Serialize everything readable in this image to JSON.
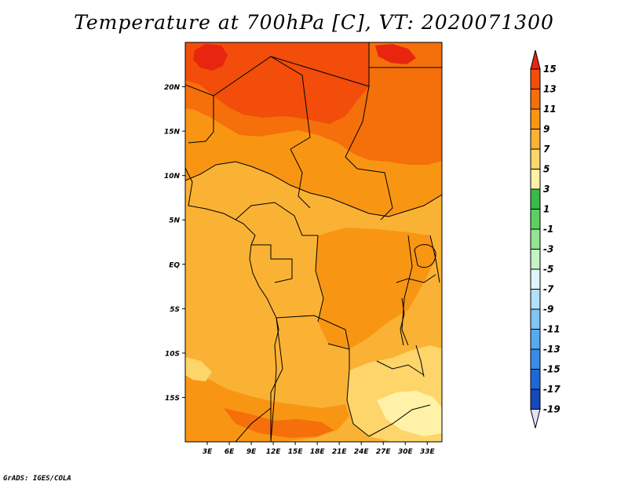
{
  "title": "Temperature at 700hPa [C], VT: 2020071300",
  "credit": "GrADS: IGES/COLA",
  "map": {
    "lon_range": [
      0,
      35
    ],
    "lat_range": [
      -20,
      25
    ],
    "lat_labels": [
      {
        "value": 20,
        "label": "20N"
      },
      {
        "value": 15,
        "label": "15N"
      },
      {
        "value": 10,
        "label": "10N"
      },
      {
        "value": 5,
        "label": "5N"
      },
      {
        "value": 0,
        "label": "EQ"
      },
      {
        "value": -5,
        "label": "5S"
      },
      {
        "value": -10,
        "label": "10S"
      },
      {
        "value": -15,
        "label": "15S"
      }
    ],
    "lon_labels": [
      {
        "value": 3,
        "label": "3E"
      },
      {
        "value": 6,
        "label": "6E"
      },
      {
        "value": 9,
        "label": "9E"
      },
      {
        "value": 12,
        "label": "12E"
      },
      {
        "value": 15,
        "label": "15E"
      },
      {
        "value": 18,
        "label": "18E"
      },
      {
        "value": 21,
        "label": "21E"
      },
      {
        "value": 24,
        "label": "24E"
      },
      {
        "value": 27,
        "label": "27E"
      },
      {
        "value": 30,
        "label": "30E"
      },
      {
        "value": 33,
        "label": "33E"
      }
    ]
  },
  "colorbar": {
    "labels": [
      "15",
      "13",
      "11",
      "9",
      "7",
      "5",
      "3",
      "1",
      "-1",
      "-3",
      "-5",
      "-7",
      "-9",
      "-11",
      "-13",
      "-15",
      "-17",
      "-19"
    ],
    "colors": [
      "#e8260f",
      "#f24d0a",
      "#f56f0b",
      "#f89613",
      "#fab234",
      "#fdd56b",
      "#fff2a8",
      "#3ab84a",
      "#5dd062",
      "#93e493",
      "#c6f3c4",
      "#e1f4fd",
      "#b4dffb",
      "#82c5f4",
      "#58a9ee",
      "#3a8be6",
      "#1f67d6",
      "#1548b8",
      "#0a1478",
      "#e4e0f6"
    ]
  },
  "field_colors": {
    "t15": "#e8260f",
    "t13": "#f24d0a",
    "t11": "#f56f0b",
    "t9": "#f89613",
    "t7": "#fab234",
    "t5": "#fdd56b",
    "t3": "#fff2a8"
  }
}
